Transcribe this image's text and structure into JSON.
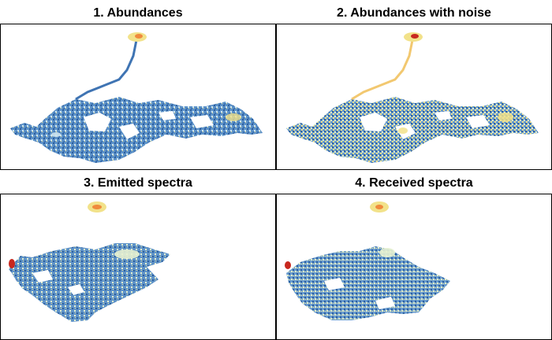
{
  "panels": [
    {
      "title": "1. Abundances"
    },
    {
      "title": "2. Abundances with noise"
    },
    {
      "title": "3. Emitted spectra"
    },
    {
      "title": "4. Received spectra"
    }
  ],
  "colors": {
    "low": "#2c5f9e",
    "mid_low": "#6fa8d6",
    "mid": "#cfe6f0",
    "mid_high": "#f2e28a",
    "high": "#f08a3c",
    "peak": "#c8281e"
  }
}
